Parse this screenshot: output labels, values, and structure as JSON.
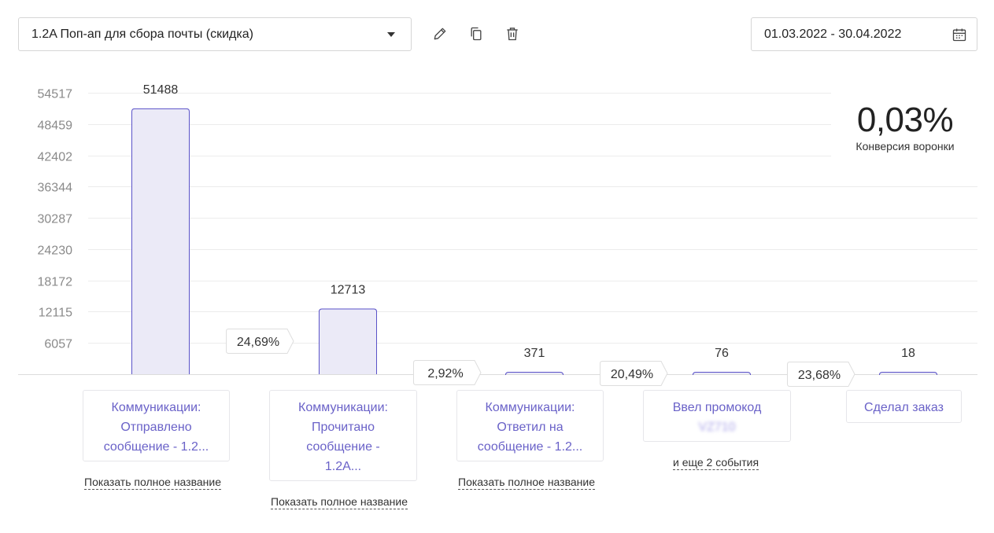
{
  "toolbar": {
    "funnel_select_value": "1.2A Поп-ап для сбора почты (скидка)",
    "date_range": "01.03.2022 - 30.04.2022"
  },
  "kpi": {
    "value": "0,03%",
    "label": "Конверсия воронки"
  },
  "steps": [
    {
      "lines": [
        "Коммуникации:",
        "Отправлено",
        "сообщение - 1.2..."
      ],
      "link": "Показать полное название"
    },
    {
      "lines": [
        "Коммуникации:",
        "Прочитано",
        "сообщение -",
        "1.2A..."
      ],
      "link": "Показать полное название"
    },
    {
      "lines": [
        "Коммуникации:",
        "Ответил на",
        "сообщение - 1.2..."
      ],
      "link": "Показать полное название"
    },
    {
      "lines": [
        "Ввел промокод",
        "VZ710"
      ],
      "link": "и еще 2 события"
    },
    {
      "lines": [
        "Сделал заказ"
      ],
      "link": ""
    }
  ],
  "chart_data": {
    "type": "bar",
    "categories": [
      "Коммуникации: Отправлено сообщение - 1.2...",
      "Коммуникации: Прочитано сообщение - 1.2A...",
      "Коммуникации: Ответил на сообщение - 1.2...",
      "Ввел промокод VZ710",
      "Сделал заказ"
    ],
    "values": [
      51488,
      12713,
      371,
      76,
      18
    ],
    "value_labels": [
      "51488",
      "12713",
      "371",
      "76",
      "18"
    ],
    "step_conversions": [
      "24,69%",
      "2,92%",
      "20,49%",
      "23,68%"
    ],
    "yticks": [
      6057,
      12115,
      18172,
      24230,
      30287,
      36344,
      42402,
      48459,
      54517
    ],
    "ylim": [
      0,
      54517
    ],
    "grid": true,
    "colors": {
      "bar_fill": "#ebeaf7",
      "bar_stroke": "#5a52c8",
      "grid": "#ececec",
      "axis_text": "#8a8a8a"
    }
  }
}
